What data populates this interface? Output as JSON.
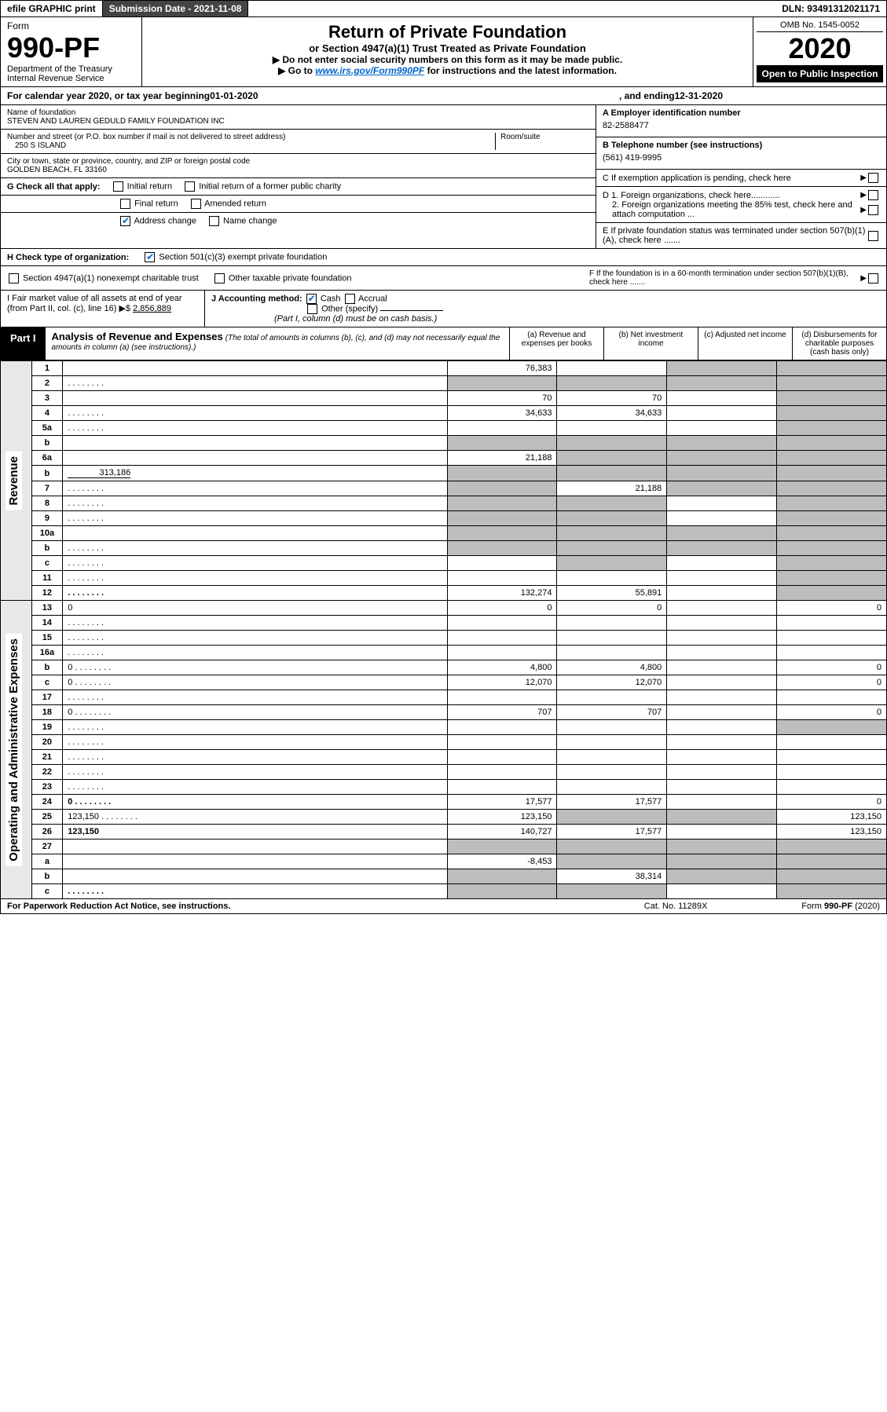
{
  "colors": {
    "dark": "#444444",
    "black": "#000000",
    "blue": "#0066cc",
    "shade": "#bdbdbd",
    "lightshade": "#e8e8e8"
  },
  "topbar": {
    "efile": "efile GRAPHIC print",
    "submission": "Submission Date - 2021-11-08",
    "dln": "DLN: 93491312021171"
  },
  "header": {
    "form_word": "Form",
    "form_no": "990-PF",
    "dept": "Department of the Treasury",
    "irs": "Internal Revenue Service",
    "title": "Return of Private Foundation",
    "subtitle": "or Section 4947(a)(1) Trust Treated as Private Foundation",
    "instr1": "▶ Do not enter social security numbers on this form as it may be made public.",
    "instr2_pre": "▶ Go to ",
    "instr2_link": "www.irs.gov/Form990PF",
    "instr2_post": " for instructions and the latest information.",
    "omb": "OMB No. 1545-0052",
    "year": "2020",
    "open": "Open to Public Inspection"
  },
  "calendar": {
    "pre": "For calendar year 2020, or tax year beginning ",
    "begin": "01-01-2020",
    "mid": ", and ending ",
    "end": "12-31-2020"
  },
  "entity": {
    "name_label": "Name of foundation",
    "name": "STEVEN AND LAUREN GEDULD FAMILY FOUNDATION INC",
    "addr_label": "Number and street (or P.O. box number if mail is not delivered to street address)",
    "addr": "250 S ISLAND",
    "room_label": "Room/suite",
    "city_label": "City or town, state or province, country, and ZIP or foreign postal code",
    "city": "GOLDEN BEACH, FL  33160",
    "a_label": "A Employer identification number",
    "a_val": "82-2588477",
    "b_label": "B Telephone number (see instructions)",
    "b_val": "(561) 419-9995",
    "c_label": "C If exemption application is pending, check here",
    "d1": "D 1. Foreign organizations, check here............",
    "d2": "2. Foreign organizations meeting the 85% test, check here and attach computation ...",
    "e": "E  If private foundation status was terminated under section 507(b)(1)(A), check here .......",
    "f": "F  If the foundation is in a 60-month termination under section 507(b)(1)(B), check here ......."
  },
  "g": {
    "label": "G Check all that apply:",
    "initial": "Initial return",
    "initial_former": "Initial return of a former public charity",
    "final": "Final return",
    "amended": "Amended return",
    "address": "Address change",
    "name": "Name change"
  },
  "h": {
    "label": "H Check type of organization:",
    "c501": "Section 501(c)(3) exempt private foundation",
    "c4947": "Section 4947(a)(1) nonexempt charitable trust",
    "other": "Other taxable private foundation"
  },
  "i": {
    "label": "I Fair market value of all assets at end of year (from Part II, col. (c), line 16)",
    "arrow": "▶$",
    "val": "2,856,889"
  },
  "j": {
    "label": "J Accounting method:",
    "cash": "Cash",
    "accrual": "Accrual",
    "other": "Other (specify)",
    "note": "(Part I, column (d) must be on cash basis.)"
  },
  "part1": {
    "label": "Part I",
    "title": "Analysis of Revenue and Expenses",
    "title_note": "(The total of amounts in columns (b), (c), and (d) may not necessarily equal the amounts in column (a) (see instructions).)",
    "col_a": "(a)   Revenue and expenses per books",
    "col_b": "(b)   Net investment income",
    "col_c": "(c)   Adjusted net income",
    "col_d": "(d)  Disbursements for charitable purposes (cash basis only)"
  },
  "vlabels": {
    "rev": "Revenue",
    "op": "Operating and Administrative Expenses"
  },
  "rows": [
    {
      "n": "1",
      "d": "",
      "a": "76,383",
      "b": "",
      "c": "",
      "c_shade": true,
      "d_shade": true
    },
    {
      "n": "2",
      "d": "",
      "dots": true,
      "a": "",
      "b": "",
      "c": "",
      "a_shade": true,
      "b_shade": true,
      "c_shade": true,
      "d_shade": true
    },
    {
      "n": "3",
      "d": "",
      "a": "70",
      "b": "70",
      "c": "",
      "d_shade": true
    },
    {
      "n": "4",
      "d": "",
      "dots": true,
      "a": "34,633",
      "b": "34,633",
      "c": "",
      "d_shade": true
    },
    {
      "n": "5a",
      "d": "",
      "dots": true,
      "a": "",
      "b": "",
      "c": "",
      "d_shade": true
    },
    {
      "n": "b",
      "d": "",
      "inset": true,
      "a": "",
      "b": "",
      "c": "",
      "a_shade": true,
      "b_shade": true,
      "c_shade": true,
      "d_shade": true
    },
    {
      "n": "6a",
      "d": "",
      "a": "21,188",
      "b": "",
      "c": "",
      "b_shade": true,
      "c_shade": true,
      "d_shade": true
    },
    {
      "n": "b",
      "d": "",
      "inset": true,
      "inset_val": "313,186",
      "a": "",
      "b": "",
      "c": "",
      "a_shade": true,
      "b_shade": true,
      "c_shade": true,
      "d_shade": true
    },
    {
      "n": "7",
      "d": "",
      "dots": true,
      "a": "",
      "b": "21,188",
      "c": "",
      "a_shade": true,
      "c_shade": true,
      "d_shade": true
    },
    {
      "n": "8",
      "d": "",
      "dots": true,
      "a": "",
      "b": "",
      "c": "",
      "a_shade": true,
      "b_shade": true,
      "d_shade": true
    },
    {
      "n": "9",
      "d": "",
      "dots": true,
      "a": "",
      "b": "",
      "c": "",
      "a_shade": true,
      "b_shade": true,
      "d_shade": true
    },
    {
      "n": "10a",
      "d": "",
      "inset": true,
      "a": "",
      "b": "",
      "c": "",
      "a_shade": true,
      "b_shade": true,
      "c_shade": true,
      "d_shade": true
    },
    {
      "n": "b",
      "d": "",
      "dots": true,
      "inset": true,
      "a": "",
      "b": "",
      "c": "",
      "a_shade": true,
      "b_shade": true,
      "c_shade": true,
      "d_shade": true
    },
    {
      "n": "c",
      "d": "",
      "dots": true,
      "a": "",
      "b": "",
      "c": "",
      "b_shade": true,
      "d_shade": true
    },
    {
      "n": "11",
      "d": "",
      "dots": true,
      "a": "",
      "b": "",
      "c": "",
      "d_shade": true
    },
    {
      "n": "12",
      "d": "",
      "dots": true,
      "bold": true,
      "a": "132,274",
      "b": "55,891",
      "c": "",
      "d_shade": true
    },
    {
      "n": "13",
      "d": "0",
      "a": "0",
      "b": "0",
      "c": ""
    },
    {
      "n": "14",
      "d": "",
      "dots": true,
      "a": "",
      "b": "",
      "c": ""
    },
    {
      "n": "15",
      "d": "",
      "dots": true,
      "a": "",
      "b": "",
      "c": ""
    },
    {
      "n": "16a",
      "d": "",
      "dots": true,
      "a": "",
      "b": "",
      "c": ""
    },
    {
      "n": "b",
      "d": "0",
      "dots": true,
      "a": "4,800",
      "b": "4,800",
      "c": ""
    },
    {
      "n": "c",
      "d": "0",
      "dots": true,
      "a": "12,070",
      "b": "12,070",
      "c": ""
    },
    {
      "n": "17",
      "d": "",
      "dots": true,
      "a": "",
      "b": "",
      "c": ""
    },
    {
      "n": "18",
      "d": "0",
      "dots": true,
      "a": "707",
      "b": "707",
      "c": ""
    },
    {
      "n": "19",
      "d": "",
      "dots": true,
      "a": "",
      "b": "",
      "c": "",
      "d_shade": true
    },
    {
      "n": "20",
      "d": "",
      "dots": true,
      "a": "",
      "b": "",
      "c": ""
    },
    {
      "n": "21",
      "d": "",
      "dots": true,
      "a": "",
      "b": "",
      "c": ""
    },
    {
      "n": "22",
      "d": "",
      "dots": true,
      "a": "",
      "b": "",
      "c": ""
    },
    {
      "n": "23",
      "d": "",
      "dots": true,
      "a": "",
      "b": "",
      "c": ""
    },
    {
      "n": "24",
      "d": "0",
      "dots": true,
      "bold": true,
      "a": "17,577",
      "b": "17,577",
      "c": ""
    },
    {
      "n": "25",
      "d": "123,150",
      "dots": true,
      "a": "123,150",
      "b": "",
      "c": "",
      "b_shade": true,
      "c_shade": true
    },
    {
      "n": "26",
      "d": "123,150",
      "bold": true,
      "a": "140,727",
      "b": "17,577",
      "c": ""
    },
    {
      "n": "27",
      "d": "",
      "a": "",
      "b": "",
      "c": "",
      "a_shade": true,
      "b_shade": true,
      "c_shade": true,
      "d_shade": true
    },
    {
      "n": "a",
      "d": "",
      "bold": true,
      "a": "-8,453",
      "b": "",
      "c": "",
      "b_shade": true,
      "c_shade": true,
      "d_shade": true
    },
    {
      "n": "b",
      "d": "",
      "bold": true,
      "a": "",
      "b": "38,314",
      "c": "",
      "a_shade": true,
      "c_shade": true,
      "d_shade": true
    },
    {
      "n": "c",
      "d": "",
      "bold": true,
      "dots": true,
      "a": "",
      "b": "",
      "c": "",
      "a_shade": true,
      "b_shade": true,
      "d_shade": true
    }
  ],
  "footer": {
    "left": "For Paperwork Reduction Act Notice, see instructions.",
    "mid": "Cat. No. 11289X",
    "right": "Form 990-PF (2020)"
  }
}
